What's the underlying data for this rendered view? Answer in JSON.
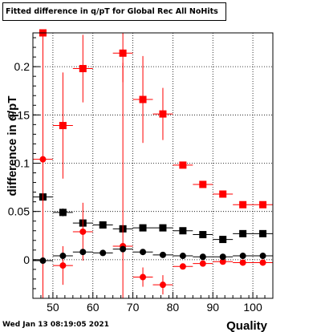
{
  "title": "Fitted difference in q/pT for Global Rec All NoHits",
  "timestamp": "Wed Jan 13 08:19:05 2021",
  "chart_data": {
    "type": "scatter",
    "title": "Fitted difference in q/pT for Global Rec All NoHits",
    "xlabel": "Quality",
    "ylabel": "difference in q/pT",
    "xlim": [
      45,
      105
    ],
    "ylim": [
      -0.04,
      0.235
    ],
    "x_ticks": [
      50,
      60,
      70,
      80,
      90,
      100
    ],
    "y_ticks": [
      0,
      0.05,
      0.1,
      0.15,
      0.2
    ],
    "y_tick_labels": [
      "0",
      "0.05",
      "0.1",
      "0.15",
      "0.2"
    ],
    "grid": true,
    "bin_half_width": 2.5,
    "series": [
      {
        "marker": "square",
        "color": "#ff0000",
        "x": [
          47.5,
          52.5,
          57.5,
          67.5,
          72.5,
          77.5,
          82.5,
          87.5,
          92.5,
          97.5,
          102.5
        ],
        "y": [
          0.235,
          0.139,
          0.198,
          0.214,
          0.166,
          0.151,
          0.098,
          0.078,
          0.068,
          0.057,
          0.057
        ],
        "err": [
          0.0,
          0.055,
          0.035,
          0.03,
          0.045,
          0.027,
          0.003,
          0.002,
          0.002,
          0.002,
          0.002
        ]
      },
      {
        "marker": "square",
        "color": "#000000",
        "x": [
          47.5,
          52.5,
          57.5,
          62.5,
          67.5,
          72.5,
          77.5,
          82.5,
          87.5,
          92.5,
          97.5,
          102.5
        ],
        "y": [
          0.065,
          0.049,
          0.038,
          0.036,
          0.032,
          0.033,
          0.033,
          0.03,
          0.026,
          0.021,
          0.027,
          0.027
        ],
        "err": [
          0.004,
          0.004,
          0.002,
          0.001,
          0.001,
          0.001,
          0.001,
          0.001,
          0.001,
          0.001,
          0.001,
          0.001
        ]
      },
      {
        "marker": "circle",
        "color": "#ff0000",
        "x": [
          47.5,
          52.5,
          57.5,
          67.5,
          72.5,
          77.5,
          82.5,
          87.5,
          92.5,
          97.5,
          102.5
        ],
        "y": [
          0.104,
          -0.006,
          0.029,
          0.014,
          -0.018,
          -0.026,
          -0.007,
          -0.004,
          -0.002,
          -0.003,
          -0.003
        ],
        "err": [
          0.15,
          0.02,
          0.03,
          0.19,
          0.01,
          0.01,
          0.002,
          0.002,
          0.002,
          0.002,
          0.002
        ]
      },
      {
        "marker": "circle",
        "color": "#000000",
        "x": [
          47.5,
          52.5,
          57.5,
          62.5,
          67.5,
          72.5,
          77.5,
          82.5,
          87.5,
          92.5,
          97.5,
          102.5
        ],
        "y": [
          -0.001,
          0.004,
          0.008,
          0.007,
          0.011,
          0.008,
          0.005,
          0.004,
          0.003,
          0.003,
          0.004,
          0.004
        ],
        "err": [
          0.003,
          0.002,
          0.001,
          0.001,
          0.001,
          0.001,
          0.001,
          0.001,
          0.001,
          0.001,
          0.001,
          0.001
        ]
      }
    ]
  }
}
